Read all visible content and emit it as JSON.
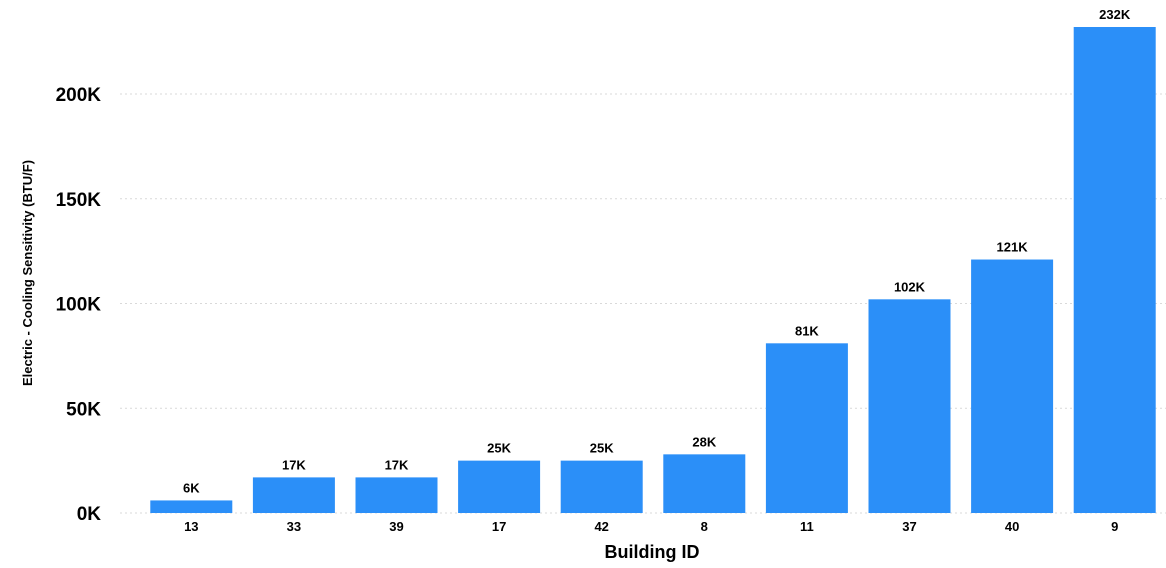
{
  "chart_data": {
    "type": "bar",
    "xlabel": "Building ID",
    "ylabel": "Electric - Cooling Sensitivity (BTU/F)",
    "categories": [
      "13",
      "33",
      "39",
      "17",
      "42",
      "8",
      "11",
      "37",
      "40",
      "9"
    ],
    "values": [
      6000,
      17000,
      17000,
      25000,
      25000,
      28000,
      81000,
      102000,
      121000,
      232000
    ],
    "data_labels": [
      "6K",
      "17K",
      "17K",
      "25K",
      "25K",
      "28K",
      "81K",
      "102K",
      "121K",
      "232K"
    ],
    "ylim": [
      0,
      232000
    ],
    "yticks": [
      0,
      50000,
      100000,
      150000,
      200000
    ],
    "ytick_labels": [
      "0K",
      "50K",
      "100K",
      "150K",
      "200K"
    ],
    "grid": true,
    "legend": "none",
    "bar_color": "#2b8ff8",
    "grid_color": "#d9d9d9"
  }
}
